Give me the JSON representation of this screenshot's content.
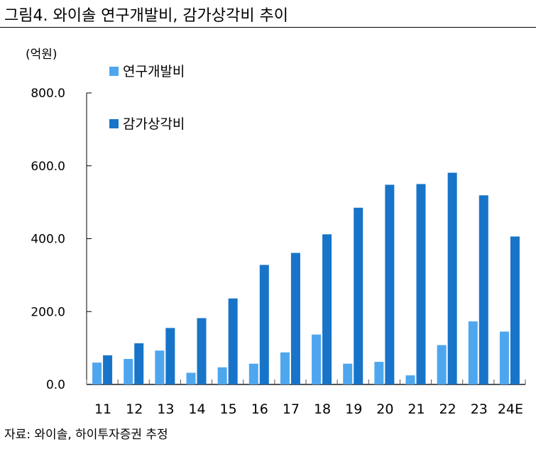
{
  "figure": {
    "title": "그림4. 와이솔 연구개발비, 감가상각비 추이",
    "unit": "(억원)",
    "source": "자료: 와이솔, 하이투자증권 추정"
  },
  "chart_data": {
    "type": "bar",
    "categories": [
      "11",
      "12",
      "13",
      "14",
      "15",
      "16",
      "17",
      "18",
      "19",
      "20",
      "21",
      "22",
      "23",
      "24E"
    ],
    "series": [
      {
        "name": "연구개발비",
        "color": "#4ea6ee",
        "values": [
          60,
          70,
          93,
          32,
          47,
          57,
          88,
          137,
          57,
          62,
          25,
          108,
          173,
          145
        ]
      },
      {
        "name": "감가상각비",
        "color": "#1874c8",
        "values": [
          80,
          113,
          155,
          182,
          236,
          328,
          361,
          412,
          485,
          548,
          550,
          581,
          519,
          406
        ]
      }
    ],
    "ylim": [
      0,
      800
    ],
    "yticks": [
      "0.0",
      "200.0",
      "400.0",
      "600.0",
      "800.0"
    ],
    "ytick_values": [
      0,
      200,
      400,
      600,
      800
    ],
    "grid": false,
    "legend_position": "top-left"
  }
}
